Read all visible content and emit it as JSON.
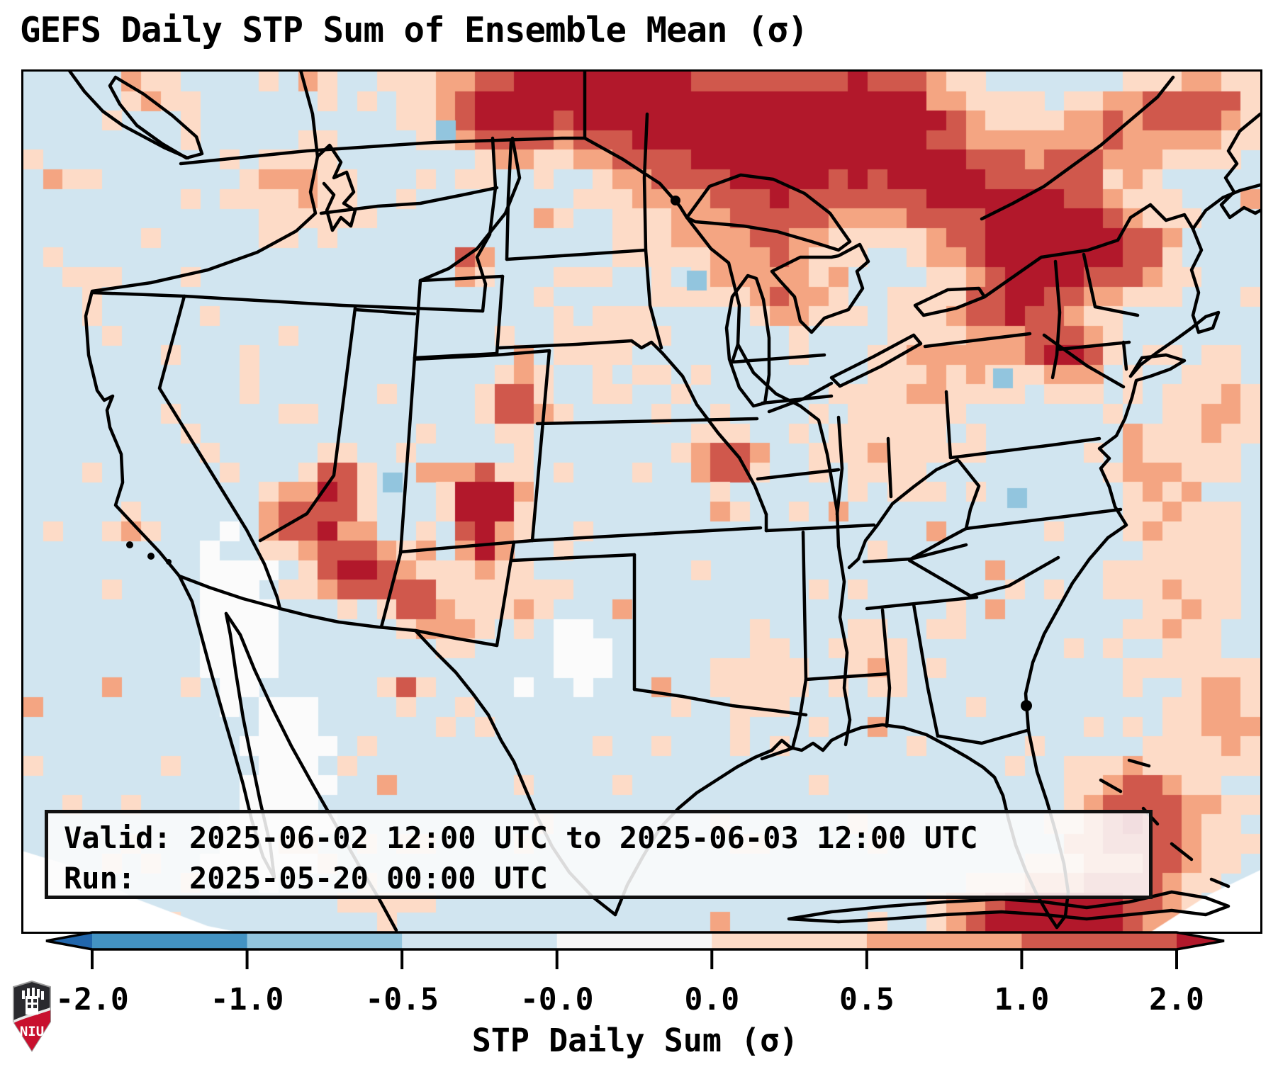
{
  "title": "GEFS Daily STP Sum of Ensemble Mean (σ)",
  "info_box": {
    "line1": "Valid: 2025-06-02 12:00 UTC to 2025-06-03 12:00 UTC",
    "line2": "Run:   2025-05-20 00:00 UTC"
  },
  "colorbar": {
    "label": "STP Daily Sum (σ)",
    "ticks": [
      "-2.0",
      "-1.0",
      "-0.5",
      "-0.0",
      "0.0",
      "0.5",
      "1.0",
      "2.0"
    ],
    "segment_colors": [
      "#4393c3",
      "#92c5de",
      "#d1e5f0",
      "#f7f7f7",
      "#fddbc7",
      "#f4a582",
      "#d0584c"
    ],
    "under_arrow_color": "#2166ac",
    "over_arrow_color": "#b2182b",
    "outline_color": "#000000"
  },
  "logo": {
    "text": "NIU",
    "shield_dark": "#2a2a2e",
    "shield_red": "#c8102e"
  },
  "chart_data": {
    "type": "heatmap",
    "title": "GEFS Daily STP Sum of Ensemble Mean (σ)",
    "colorbar_label": "STP Daily Sum (σ)",
    "valid_period": "2025-06-02 12:00 UTC to 2025-06-03 12:00 UTC",
    "run_time": "2025-05-20 00:00 UTC",
    "level_boundaries": [
      -2.0,
      -1.0,
      -0.5,
      -0.0,
      0.0,
      0.5,
      1.0,
      2.0
    ],
    "palette": {
      "background_band": "#d1e5f0",
      "white_band": "#fbfbfb",
      "peach_band": "#fddbc7",
      "salmon_band": "#f4a582",
      "red_band": "#d0584c",
      "dark_red_band": "#b2182b",
      "light_blue_band": "#92c5de"
    },
    "grid": {
      "cols": 63,
      "rows": 44,
      "seed": 1234,
      "noise_amp": 0.22,
      "scatter_peach_prob": 0.085,
      "scatter_salmon_prob": 0.012
    },
    "clusters": [
      [
        29,
        1,
        7,
        2.8,
        1.1
      ],
      [
        36,
        3,
        5,
        2.6,
        0.95
      ],
      [
        24,
        2.5,
        3,
        2,
        0.55
      ],
      [
        43,
        2.5,
        4.5,
        3,
        1.25
      ],
      [
        47,
        6,
        4,
        3,
        0.8
      ],
      [
        40,
        6.5,
        3,
        2.2,
        0.55
      ],
      [
        52,
        7,
        3.5,
        2.6,
        1.0
      ],
      [
        56,
        9.5,
        3,
        2.4,
        0.8
      ],
      [
        60,
        2,
        3,
        2.4,
        0.8
      ],
      [
        55,
        3,
        3,
        2,
        0.6
      ],
      [
        50.5,
        12,
        3,
        2,
        0.7
      ],
      [
        53.5,
        14.5,
        2,
        1.6,
        0.9
      ],
      [
        47,
        15,
        4.5,
        3,
        0.4
      ],
      [
        51,
        10,
        3,
        2,
        0.6
      ],
      [
        34,
        6.5,
        4.5,
        3.5,
        0.45
      ],
      [
        37.5,
        9.5,
        3,
        2.6,
        0.45
      ],
      [
        39.5,
        12,
        1.6,
        1.4,
        0.6
      ],
      [
        36,
        20,
        1.7,
        1.3,
        0.95
      ],
      [
        14,
        6,
        3.2,
        2.4,
        0.45
      ],
      [
        22.8,
        9.8,
        0.9,
        0.9,
        0.85
      ],
      [
        25.2,
        17,
        1.4,
        1.4,
        1.0
      ],
      [
        16,
        20.8,
        1.2,
        1.1,
        0.95
      ],
      [
        23.6,
        21.8,
        1.9,
        1.4,
        1.05
      ],
      [
        14.5,
        23,
        2.4,
        1.7,
        1.1
      ],
      [
        17,
        25.5,
        1.9,
        1.5,
        1.3
      ],
      [
        20,
        26.8,
        1.5,
        1.2,
        0.85
      ],
      [
        23.4,
        23.4,
        1.2,
        2,
        1.2
      ],
      [
        21.5,
        28.3,
        1.8,
        1,
        0.5
      ],
      [
        25.5,
        27,
        2.4,
        1.4,
        0.45
      ],
      [
        19.5,
        31.6,
        0.9,
        0.8,
        0.75
      ],
      [
        38,
        31,
        2.6,
        2,
        0.4
      ],
      [
        43.5,
        30,
        2,
        1.6,
        0.4
      ],
      [
        59,
        27,
        3,
        5,
        0.42
      ],
      [
        57.5,
        21,
        2,
        2,
        0.45
      ],
      [
        61,
        17,
        2,
        3,
        0.5
      ],
      [
        57,
        38.5,
        4,
        3,
        0.95
      ],
      [
        54,
        43,
        4.5,
        1.8,
        1.1
      ],
      [
        61.5,
        33,
        2,
        2.2,
        0.55
      ],
      [
        50,
        43.5,
        3,
        1.2,
        0.8
      ],
      [
        6.5,
        1.3,
        1.1,
        0.9,
        0.55
      ],
      [
        1.8,
        5.6,
        0.9,
        0.7,
        0.6
      ],
      [
        5.4,
        23.2,
        0.9,
        0.8,
        0.65
      ],
      [
        3,
        10.5,
        0.8,
        0.7,
        0.5
      ],
      [
        44,
        19,
        4,
        3,
        0.3
      ],
      [
        30,
        14,
        3,
        3,
        0.3
      ]
    ],
    "white_zones": [
      [
        11,
        29,
        2.6,
        5.5,
        1.0
      ],
      [
        13.5,
        36,
        3.2,
        4.5,
        1.0
      ],
      [
        10,
        25.5,
        1.8,
        2.6,
        0.85
      ],
      [
        28.5,
        30,
        3,
        2.6,
        0.75
      ],
      [
        11.5,
        40,
        3.5,
        2.5,
        0.95
      ],
      [
        26,
        32,
        2,
        2,
        0.6
      ]
    ],
    "blue_cells": [
      [
        18.3,
        20.5
      ],
      [
        49.4,
        15.2
      ],
      [
        50.1,
        21.3
      ],
      [
        33.8,
        10.2
      ],
      [
        21,
        2.5
      ]
    ]
  }
}
